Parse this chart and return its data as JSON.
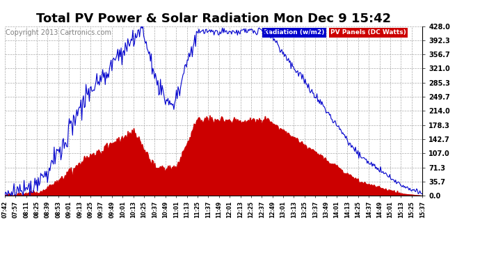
{
  "title": "Total PV Power & Solar Radiation Mon Dec 9 15:42",
  "copyright": "Copyright 2013 Cartronics.com",
  "legend_radiation": "Radiation (w/m2)",
  "legend_pv": "PV Panels (DC Watts)",
  "yticks": [
    0.0,
    35.7,
    71.3,
    107.0,
    142.7,
    178.3,
    214.0,
    249.7,
    285.3,
    321.0,
    356.7,
    392.3,
    428.0
  ],
  "ymax": 428.0,
  "ymin": 0.0,
  "bg_color": "#ffffff",
  "plot_bg_color": "#ffffff",
  "grid_color": "#aaaaaa",
  "radiation_color": "#0000cc",
  "pv_color": "#cc0000",
  "pv_fill_color": "#cc0000",
  "title_fontsize": 13,
  "copyright_fontsize": 7,
  "legend_bg_radiation": "#0000cc",
  "legend_bg_pv": "#cc0000",
  "x_tick_labels": [
    "07:42",
    "07:57",
    "08:11",
    "08:25",
    "08:39",
    "08:53",
    "09:01",
    "09:13",
    "09:25",
    "09:37",
    "09:49",
    "10:01",
    "10:13",
    "10:25",
    "10:37",
    "10:49",
    "11:01",
    "11:13",
    "11:25",
    "11:37",
    "11:49",
    "12:01",
    "12:13",
    "12:25",
    "12:37",
    "12:49",
    "13:01",
    "13:13",
    "13:25",
    "13:37",
    "13:49",
    "14:01",
    "14:13",
    "14:25",
    "14:37",
    "14:49",
    "15:01",
    "15:13",
    "15:25",
    "15:37"
  ]
}
